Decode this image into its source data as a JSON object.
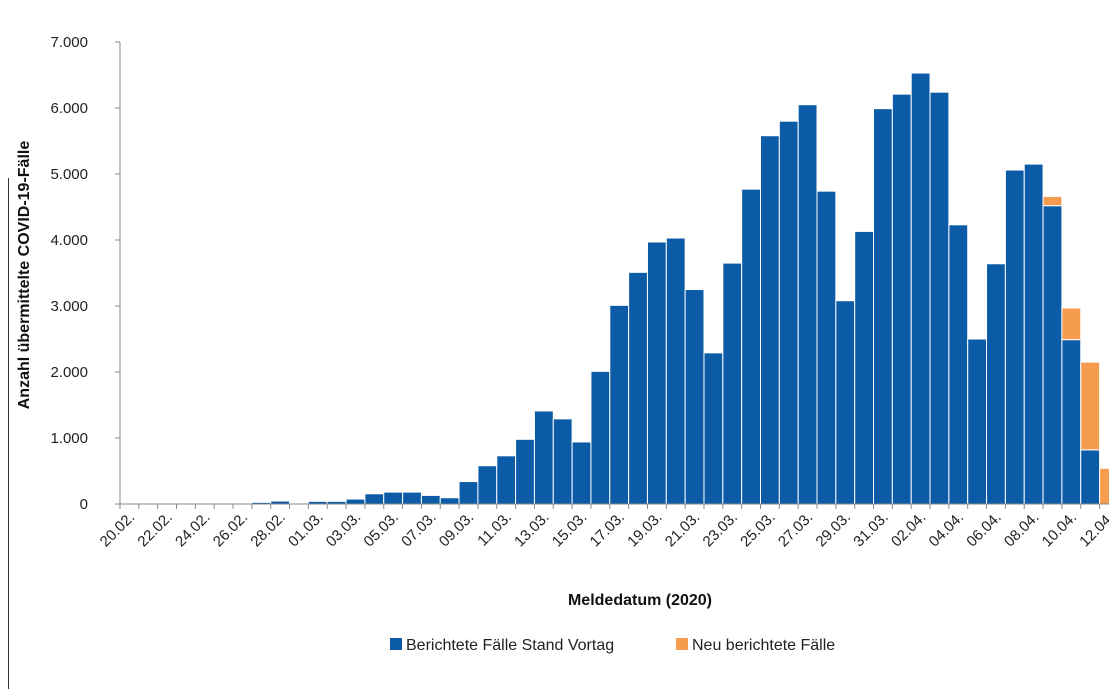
{
  "chart_data": {
    "type": "bar",
    "stacked": true,
    "title": "",
    "xlabel": "Meldedatum (2020)",
    "ylabel": "Anzahl übermittelte COVID-19-Fälle",
    "ylim": [
      0,
      7000
    ],
    "yticks": [
      0,
      1000,
      2000,
      3000,
      4000,
      5000,
      6000,
      7000
    ],
    "ytick_labels": [
      "0",
      "1.000",
      "2.000",
      "3.000",
      "4.000",
      "5.000",
      "6.000",
      "7.000"
    ],
    "grid": false,
    "legend_position": "bottom",
    "categories": [
      "20.02.",
      "21.02.",
      "22.02.",
      "23.02.",
      "24.02.",
      "25.02.",
      "26.02.",
      "27.02.",
      "28.02.",
      "29.02.",
      "01.03.",
      "02.03.",
      "03.03.",
      "04.03.",
      "05.03.",
      "06.03.",
      "07.03.",
      "08.03.",
      "09.03.",
      "10.03.",
      "11.03.",
      "12.03.",
      "13.03.",
      "14.03.",
      "15.03.",
      "16.03.",
      "17.03.",
      "18.03.",
      "19.03.",
      "20.03.",
      "21.03.",
      "22.03.",
      "23.03.",
      "24.03.",
      "25.03.",
      "26.03.",
      "27.03.",
      "28.03.",
      "29.03.",
      "30.03.",
      "31.03.",
      "01.04.",
      "02.04.",
      "03.04.",
      "04.04.",
      "05.04.",
      "06.04.",
      "07.04.",
      "08.04.",
      "09.04.",
      "10.04.",
      "11.04.",
      "12.04."
    ],
    "xtick_labels": [
      "20.02.",
      "22.02.",
      "24.02.",
      "26.02.",
      "28.02.",
      "01.03.",
      "03.03.",
      "05.03.",
      "07.03.",
      "09.03.",
      "11.03.",
      "13.03.",
      "15.03.",
      "17.03.",
      "19.03.",
      "21.03.",
      "23.03.",
      "25.03.",
      "27.03.",
      "29.03.",
      "31.03.",
      "02.04.",
      "04.04.",
      "06.04.",
      "08.04.",
      "10.04.",
      "12.04."
    ],
    "series": [
      {
        "name": "Berichtete Fälle Stand Vortag",
        "color": "#0b5ba6",
        "values": [
          0,
          0,
          15,
          15,
          15,
          15,
          15,
          25,
          45,
          15,
          40,
          40,
          75,
          155,
          180,
          180,
          130,
          95,
          340,
          580,
          730,
          980,
          1410,
          1290,
          940,
          2010,
          3010,
          3510,
          3970,
          4030,
          3250,
          2290,
          3650,
          4770,
          5580,
          5800,
          6050,
          4740,
          3080,
          4130,
          5990,
          6210,
          6530,
          6240,
          4230,
          2500,
          3640,
          5060,
          5150,
          4520,
          2490,
          820,
          0
        ]
      },
      {
        "name": "Neu berichtete Fälle",
        "color": "#f59c4e",
        "values": [
          0,
          0,
          0,
          0,
          0,
          0,
          0,
          0,
          0,
          0,
          0,
          0,
          0,
          0,
          0,
          0,
          0,
          0,
          0,
          0,
          0,
          0,
          0,
          0,
          0,
          0,
          0,
          0,
          0,
          0,
          0,
          0,
          0,
          0,
          0,
          0,
          0,
          0,
          0,
          0,
          0,
          0,
          0,
          0,
          0,
          0,
          0,
          0,
          0,
          140,
          480,
          1330,
          540
        ]
      }
    ]
  }
}
